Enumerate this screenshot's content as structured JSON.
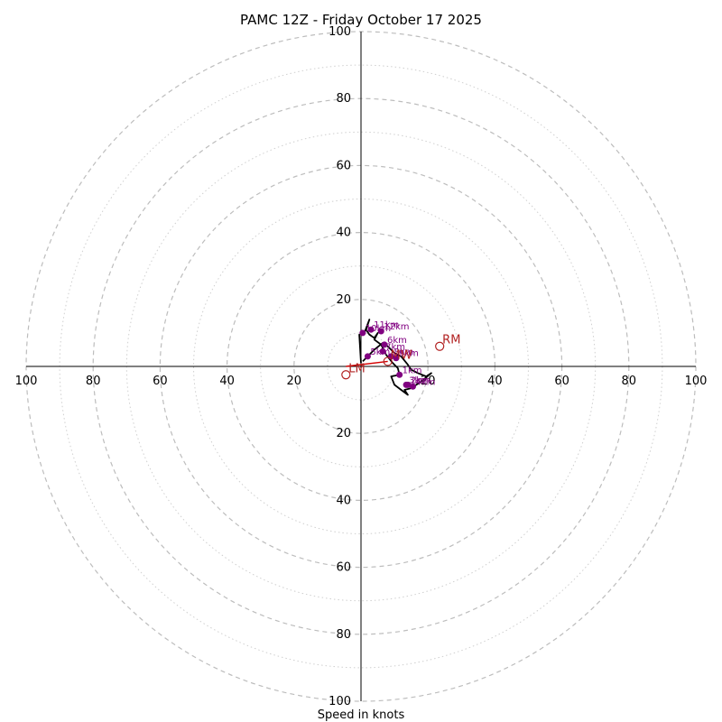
{
  "chart_data": {
    "type": "hodograph",
    "title": "PAMC 12Z - Friday October 17 2025",
    "xlabel": "Speed in knots",
    "max_speed": 100,
    "ring_major_step": 20,
    "ring_minor_step": 10,
    "tick_labels": [
      "20",
      "40",
      "60",
      "80",
      "100"
    ],
    "colors": {
      "trace": "#000000",
      "height_marker": "#800080",
      "motion": "#b22222",
      "shear_vector": "#d40000",
      "ring_major": "#bdbdbd",
      "ring_minor": "#cfcfcf"
    },
    "trace": [
      [
        0.5,
        1.5
      ],
      [
        2.0,
        3.0
      ],
      [
        4.0,
        5.0
      ],
      [
        6.5,
        7.0
      ],
      [
        8.0,
        6.0
      ],
      [
        10.0,
        4.0
      ],
      [
        12.0,
        3.0
      ],
      [
        14.0,
        0.5
      ],
      [
        15.0,
        -1.0
      ],
      [
        17.0,
        -2.0
      ],
      [
        19.5,
        -3.0
      ],
      [
        21.0,
        -2.0
      ],
      [
        18.0,
        -4.5
      ],
      [
        15.0,
        -6.5
      ],
      [
        13.0,
        -7.0
      ],
      [
        14.0,
        -8.5
      ],
      [
        12.0,
        -7.0
      ],
      [
        10.0,
        -5.5
      ],
      [
        9.0,
        -3.0
      ],
      [
        11.5,
        -2.5
      ],
      [
        11.0,
        -0.5
      ],
      [
        9.5,
        1.0
      ],
      [
        7.5,
        3.5
      ],
      [
        6.0,
        6.5
      ],
      [
        4.0,
        8.0
      ],
      [
        5.0,
        10.0
      ],
      [
        4.0,
        8.5
      ],
      [
        2.5,
        9.5
      ],
      [
        1.5,
        11.0
      ],
      [
        2.5,
        14.0
      ],
      [
        1.0,
        10.0
      ],
      [
        -0.5,
        9.5
      ],
      [
        0.0,
        1.0
      ]
    ],
    "height_markers": [
      {
        "label": "1km",
        "u": 11.5,
        "v": -2.5
      },
      {
        "label": "2km",
        "u": 14.0,
        "v": -5.5
      },
      {
        "label": "3km",
        "u": 13.5,
        "v": -5.5
      },
      {
        "label": "4km",
        "u": 15.5,
        "v": -6.0
      },
      {
        "label": "5km",
        "u": 2.0,
        "v": 3.0
      },
      {
        "label": "6km",
        "u": 7.0,
        "v": 6.5
      },
      {
        "label": "7km",
        "u": 6.5,
        "v": 4.5
      },
      {
        "label": "8km",
        "u": 9.0,
        "v": 3.0
      },
      {
        "label": "9km",
        "u": 10.5,
        "v": 2.5
      },
      {
        "label": "10km",
        "u": 0.5,
        "v": 10.0
      },
      {
        "label": "11km",
        "u": 3.0,
        "v": 11.0
      },
      {
        "label": "12km",
        "u": 6.0,
        "v": 10.5
      }
    ],
    "storm_motion": [
      {
        "label": "RM",
        "u": 23.5,
        "v": 6.0
      },
      {
        "label": "LM",
        "u": -4.5,
        "v": -2.5
      },
      {
        "label": "MW",
        "u": 8.0,
        "v": 1.5
      }
    ],
    "shear_vector": {
      "from": [
        -4.5,
        0.0
      ],
      "to": [
        8.0,
        1.5
      ]
    }
  }
}
